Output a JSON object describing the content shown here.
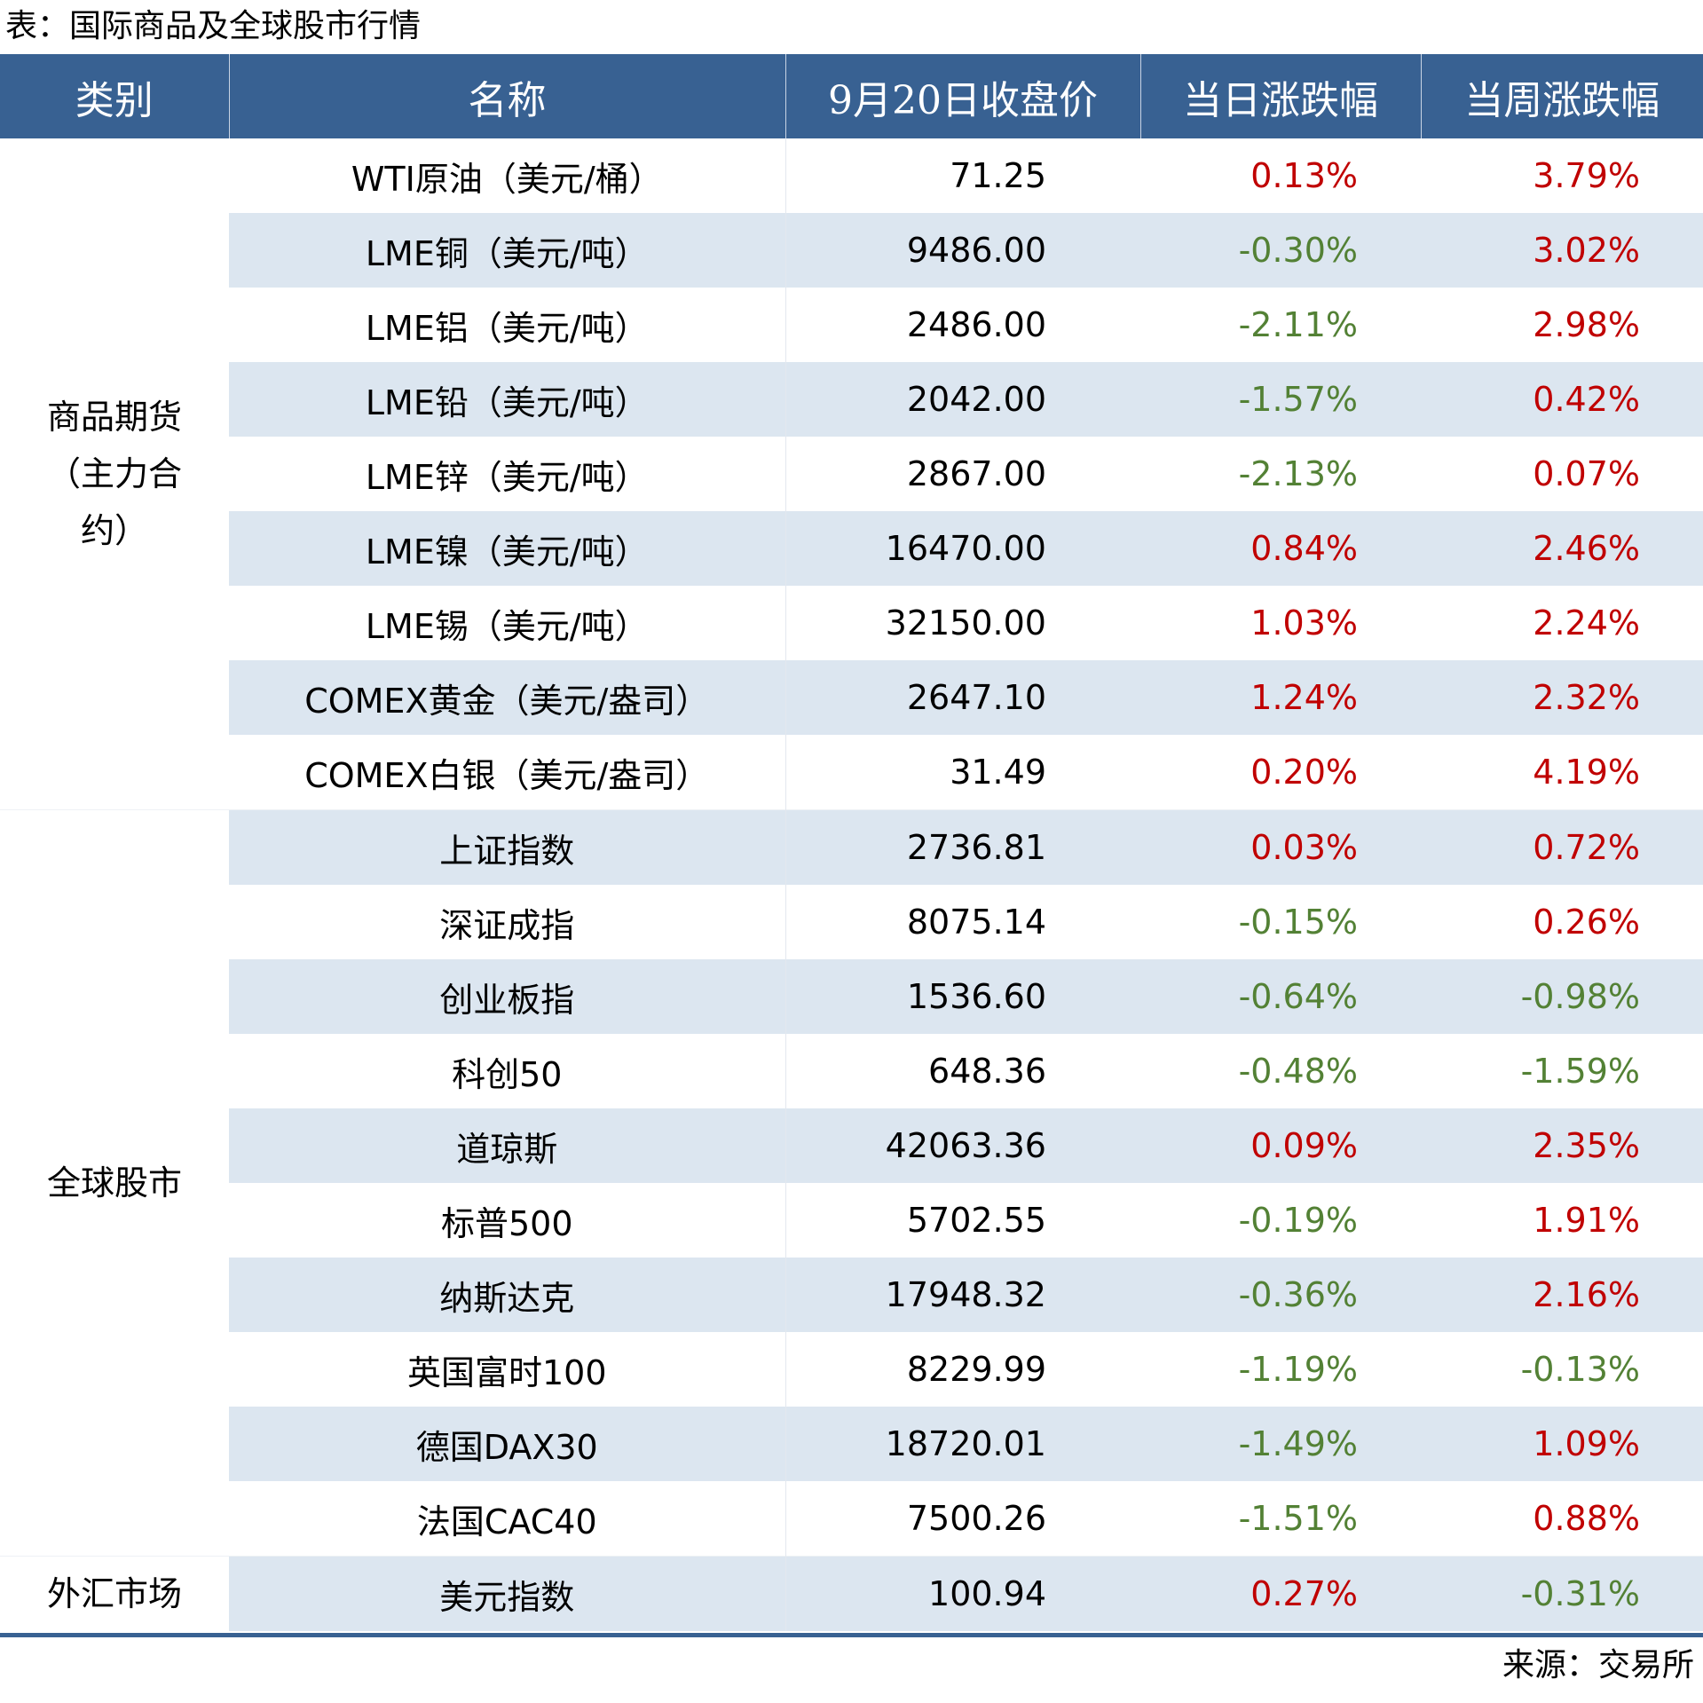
{
  "title": "表：国际商品及全球股市行情",
  "headers": [
    "类别",
    "名称",
    "9月20日收盘价",
    "当日涨跌幅",
    "当周涨跌幅"
  ],
  "colors": {
    "header": "#386192",
    "shade": "#dce6f0",
    "up": "#c00000",
    "down": "#538135"
  },
  "groups": [
    {
      "category": "商品期货（主力合约）",
      "rows": [
        {
          "name": "WTI原油（美元/桶）",
          "close": "71.25",
          "day": "0.13%",
          "week": "3.79%"
        },
        {
          "name": "LME铜（美元/吨）",
          "close": "9486.00",
          "day": "-0.30%",
          "week": "3.02%"
        },
        {
          "name": "LME铝（美元/吨）",
          "close": "2486.00",
          "day": "-2.11%",
          "week": "2.98%"
        },
        {
          "name": "LME铅（美元/吨）",
          "close": "2042.00",
          "day": "-1.57%",
          "week": "0.42%"
        },
        {
          "name": "LME锌（美元/吨）",
          "close": "2867.00",
          "day": "-2.13%",
          "week": "0.07%"
        },
        {
          "name": "LME镍（美元/吨）",
          "close": "16470.00",
          "day": "0.84%",
          "week": "2.46%"
        },
        {
          "name": "LME锡（美元/吨）",
          "close": "32150.00",
          "day": "1.03%",
          "week": "2.24%"
        },
        {
          "name": "COMEX黄金（美元/盎司）",
          "close": "2647.10",
          "day": "1.24%",
          "week": "2.32%"
        },
        {
          "name": "COMEX白银（美元/盎司）",
          "close": "31.49",
          "day": "0.20%",
          "week": "4.19%"
        }
      ]
    },
    {
      "category": "全球股市",
      "rows": [
        {
          "name": "上证指数",
          "close": "2736.81",
          "day": "0.03%",
          "week": "0.72%"
        },
        {
          "name": "深证成指",
          "close": "8075.14",
          "day": "-0.15%",
          "week": "0.26%"
        },
        {
          "name": "创业板指",
          "close": "1536.60",
          "day": "-0.64%",
          "week": "-0.98%"
        },
        {
          "name": "科创50",
          "close": "648.36",
          "day": "-0.48%",
          "week": "-1.59%"
        },
        {
          "name": "道琼斯",
          "close": "42063.36",
          "day": "0.09%",
          "week": "2.35%"
        },
        {
          "name": "标普500",
          "close": "5702.55",
          "day": "-0.19%",
          "week": "1.91%"
        },
        {
          "name": "纳斯达克",
          "close": "17948.32",
          "day": "-0.36%",
          "week": "2.16%"
        },
        {
          "name": "英国富时100",
          "close": "8229.99",
          "day": "-1.19%",
          "week": "-0.13%"
        },
        {
          "name": "德国DAX30",
          "close": "18720.01",
          "day": "-1.49%",
          "week": "1.09%"
        },
        {
          "name": "法国CAC40",
          "close": "7500.26",
          "day": "-1.51%",
          "week": "0.88%"
        }
      ]
    },
    {
      "category": "外汇市场",
      "rows": [
        {
          "name": "美元指数",
          "close": "100.94",
          "day": "0.27%",
          "week": "-0.31%"
        }
      ]
    }
  ],
  "source": "来源：交易所"
}
